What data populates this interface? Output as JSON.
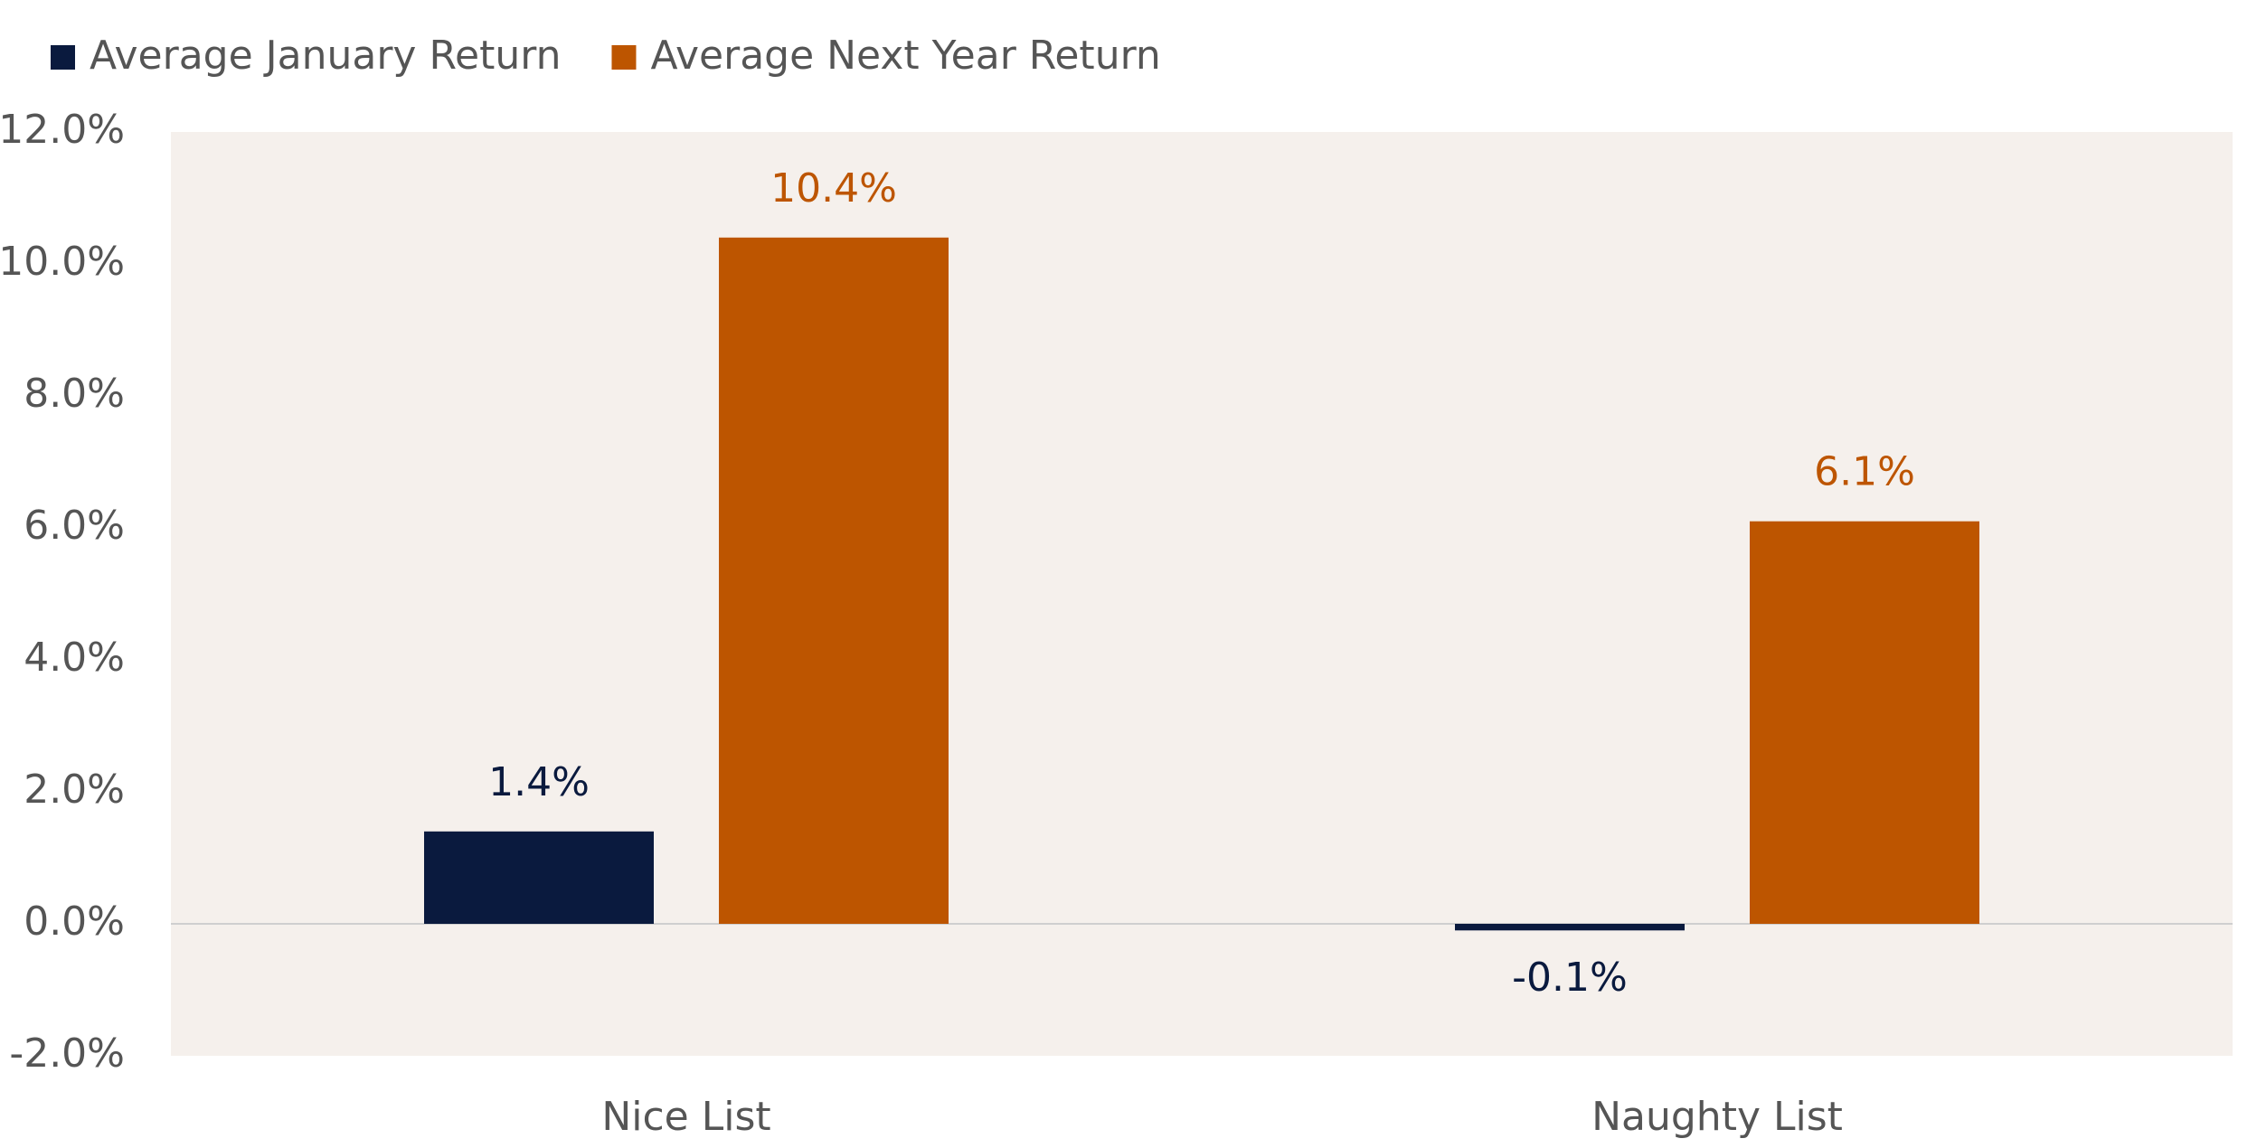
{
  "chart_data": {
    "type": "bar",
    "categories": [
      "Nice List",
      "Naughty List"
    ],
    "series": [
      {
        "name": "Average January Return",
        "color": "#0a1a3e",
        "values": [
          1.4,
          -0.1
        ],
        "value_labels": [
          "1.4%",
          "-0.1%"
        ]
      },
      {
        "name": "Average Next Year Return",
        "color": "#bd5500",
        "values": [
          10.4,
          6.1
        ],
        "value_labels": [
          "10.4%",
          "6.1%"
        ]
      }
    ],
    "ylim": [
      -2,
      12
    ],
    "yticks": [
      {
        "value": -2,
        "label": "-2.0%"
      },
      {
        "value": 0,
        "label": "0.0%"
      },
      {
        "value": 2,
        "label": "2.0%"
      },
      {
        "value": 4,
        "label": "4.0%"
      },
      {
        "value": 6,
        "label": "6.0%"
      },
      {
        "value": 8,
        "label": "8.0%"
      },
      {
        "value": 10,
        "label": "10.0%"
      },
      {
        "value": 12,
        "label": "12.0%"
      }
    ],
    "grid": false,
    "legend": "top-left"
  }
}
